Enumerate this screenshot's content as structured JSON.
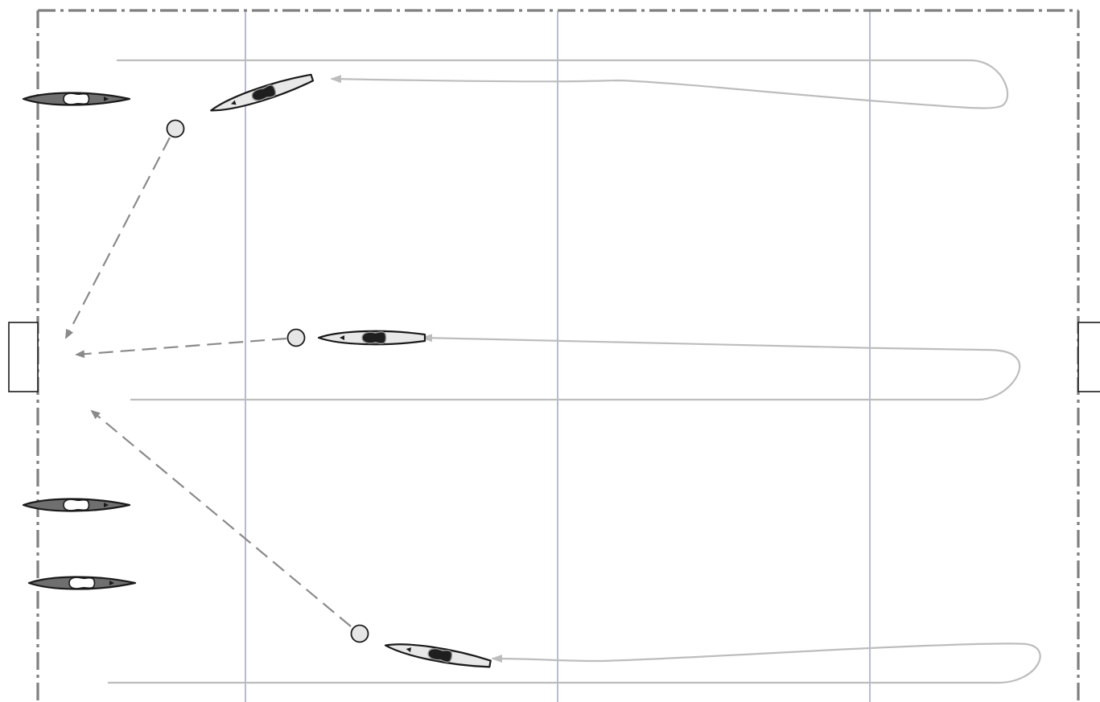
{
  "diagram": {
    "description_kind": "kayak polo drill diagram",
    "colors": {
      "background": "#ffffff",
      "boundary": "#808080",
      "field_lines": "#b4bcd8",
      "paddle_path": "#bdbdbd",
      "pass_arrow": "#8a8a8a",
      "attacker_boat_fill": "#e8e8e8",
      "defender_boat_fill": "#6f6f6f",
      "boat_outline": "#1a1a1a",
      "ball_fill": "#e6e6e6"
    },
    "elements": {
      "goals": [
        "left-goal",
        "right-goal"
      ],
      "defender_boats": 3,
      "attacker_boats": 3,
      "balls": 3,
      "paddle_paths": 3,
      "pass_arrows": 3
    }
  }
}
